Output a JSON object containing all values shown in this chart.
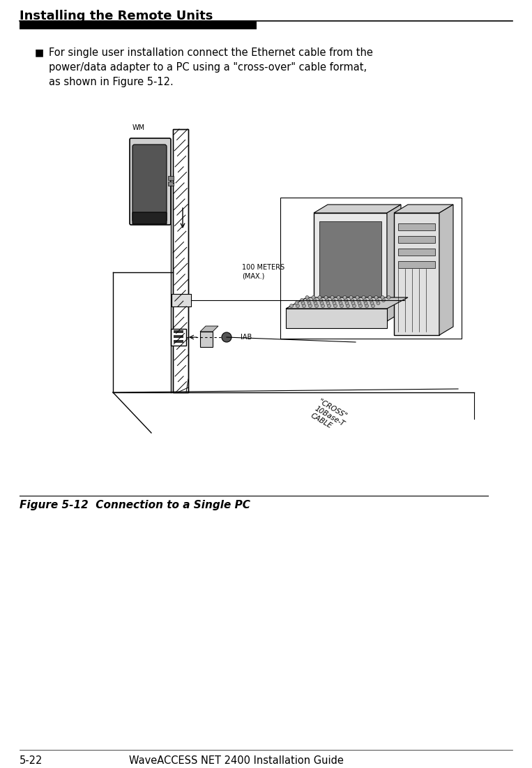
{
  "page_title": "Installing the Remote Units",
  "page_subtitle": "5-22",
  "page_footer": "WaveACCESS NET 2400 Installation Guide",
  "bullet_text": "For single user installation connect the Ethernet cable from the\npower/data adapter to a PC using a \"cross-over\" cable format,\nas shown in Figure 5-12.",
  "figure_caption": "Figure 5-12  Connection to a Single PC",
  "label_wm": "WM",
  "label_iab": "IAB",
  "label_100m": "100 METERS\n(MAX.)",
  "label_cross": "\"CROSS\"\n10Base-T\nCABLE",
  "bg_color": "#ffffff",
  "text_color": "#000000"
}
